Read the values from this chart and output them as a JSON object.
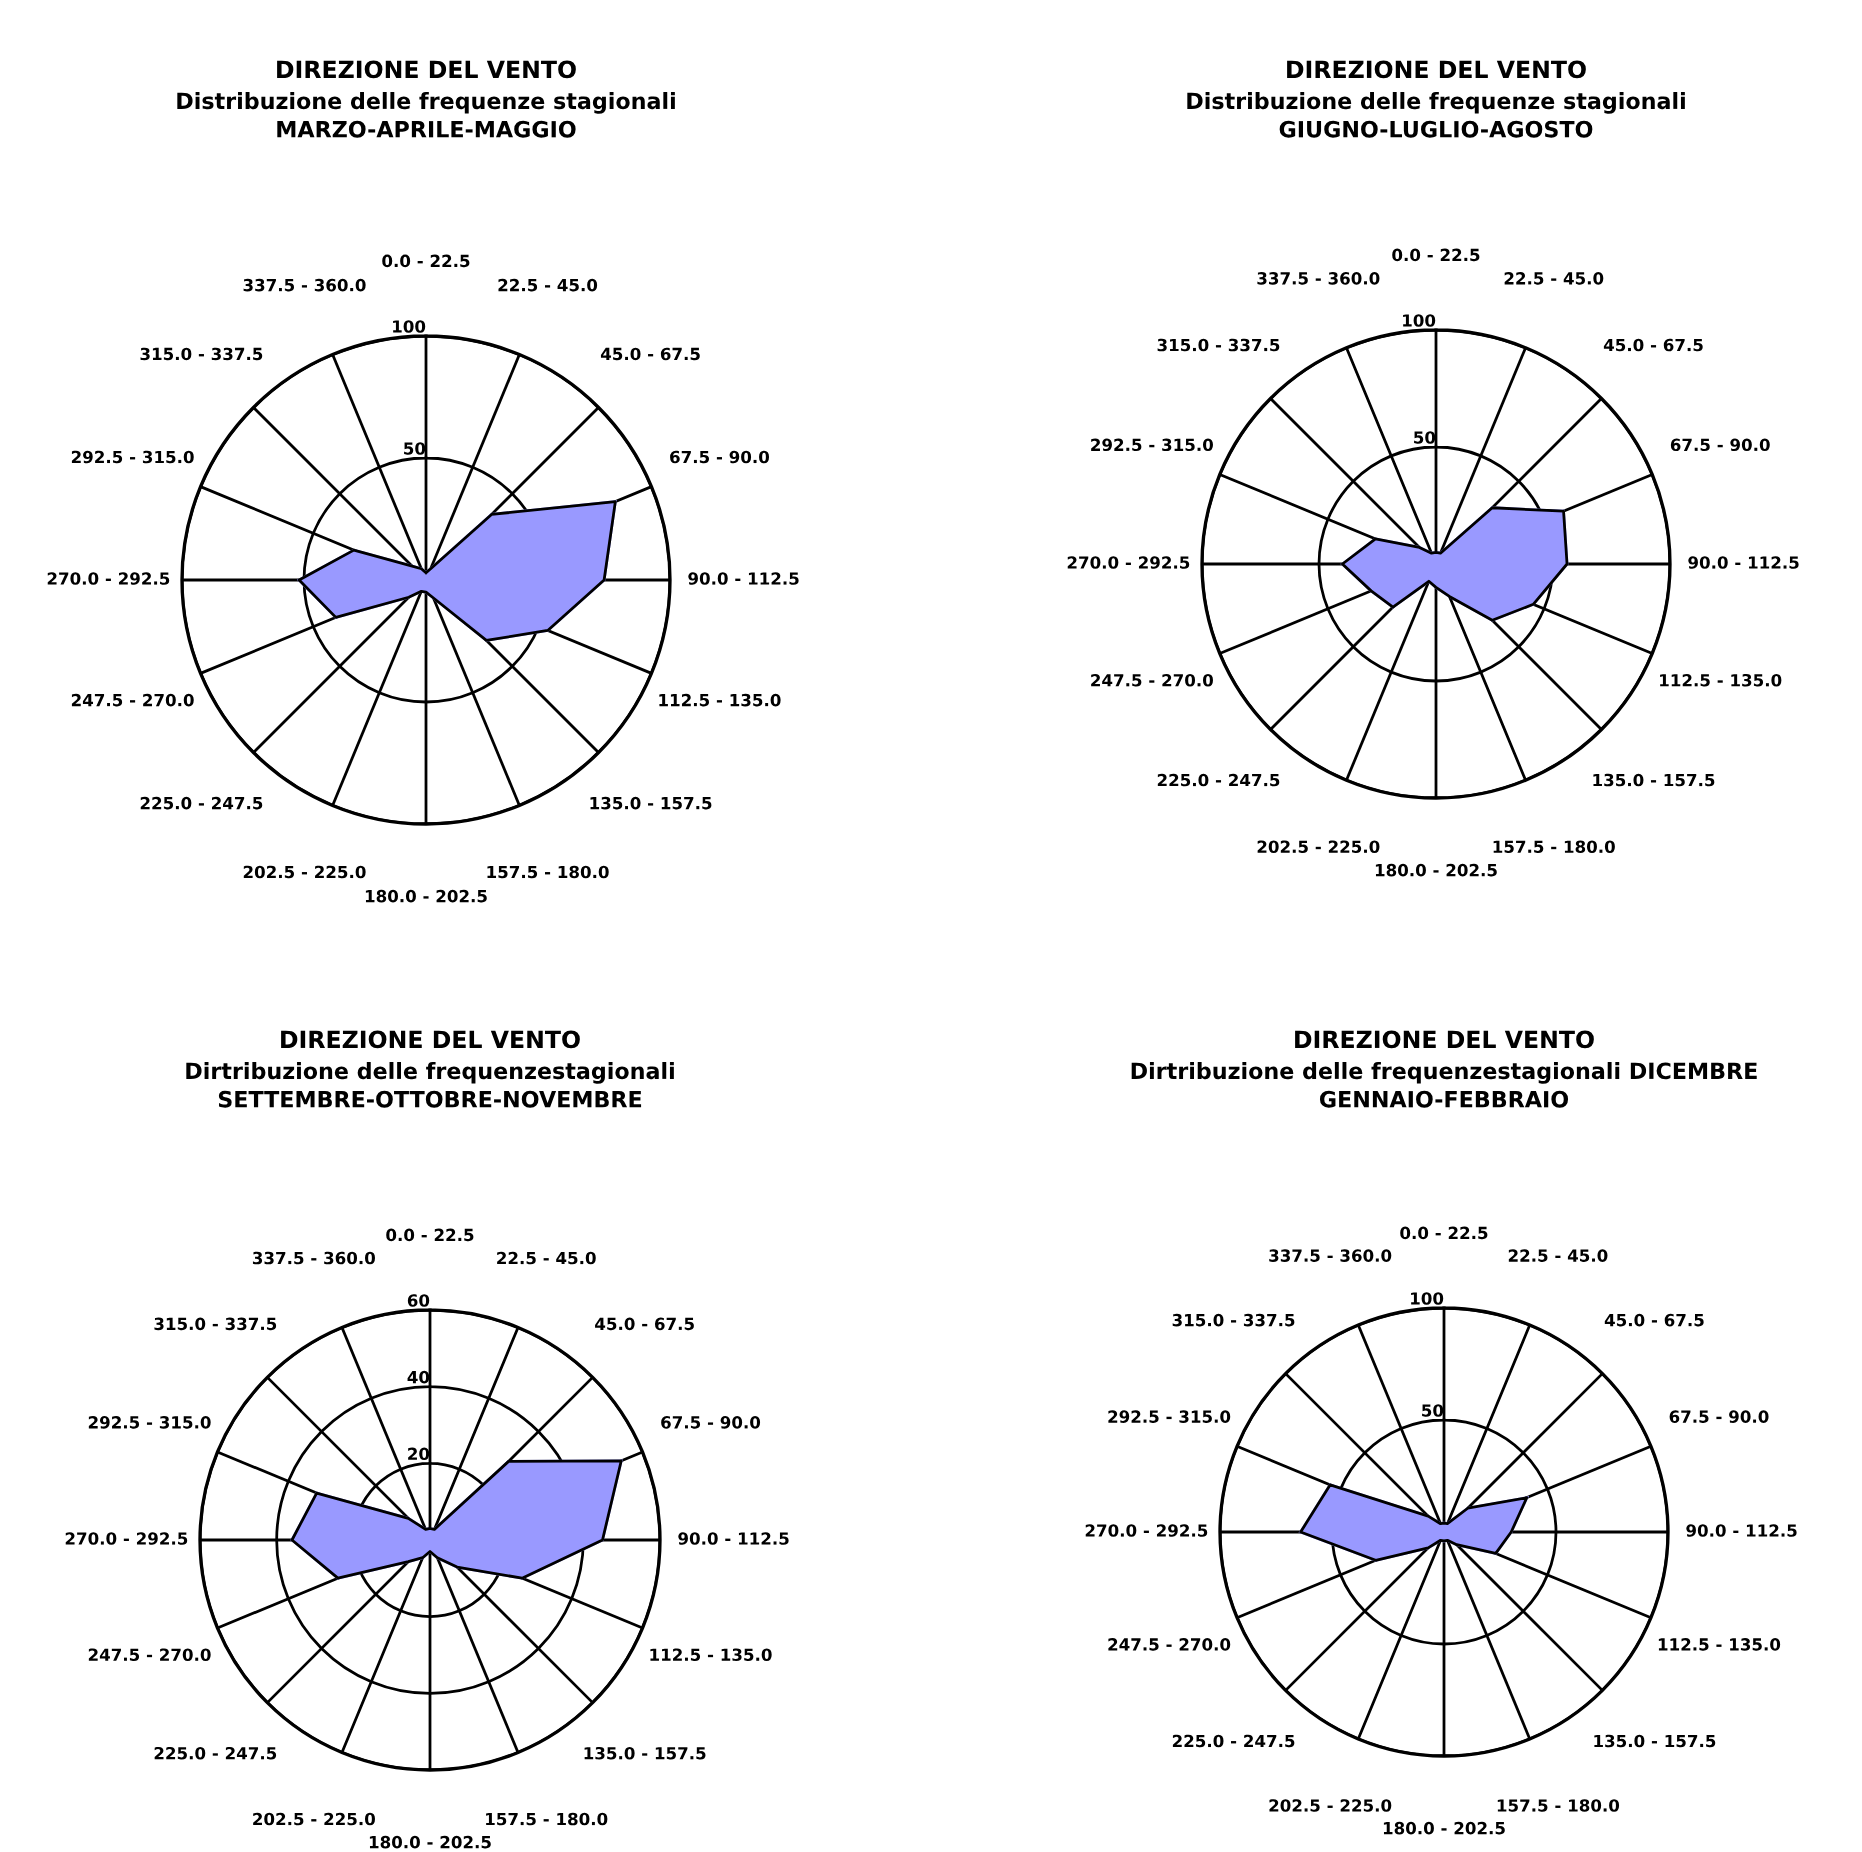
{
  "chart_data": [
    {
      "type": "radar",
      "title": "DIREZIONE DEL VENTO",
      "subtitle": "Distribuzione delle frequenze stagionali\nMARZO-APRILE-MAGGIO",
      "categories": [
        "0.0 - 22.5",
        "22.5 - 45.0",
        "45.0 - 67.5",
        "67.5 - 90.0",
        "90.0 - 112.5",
        "112.5 - 135.0",
        "135.0 - 157.5",
        "157.5 - 180.0",
        "180.0 - 202.5",
        "202.5 - 225.0",
        "225.0 - 247.5",
        "247.5 - 270.0",
        "270.0 - 292.5",
        "292.5 - 315.0",
        "315.0 - 337.5",
        "337.5 - 360.0"
      ],
      "ylim": [
        0,
        100
      ],
      "yticks": [
        50,
        100
      ],
      "grid": true,
      "series": [
        {
          "color": "#9999ff",
          "values": [
            3,
            5,
            38,
            84,
            73,
            54,
            35,
            8,
            5,
            5,
            10,
            40,
            52,
            32,
            8,
            5
          ]
        }
      ]
    },
    {
      "type": "radar",
      "title": "DIREZIONE DEL VENTO",
      "subtitle": "Distribuzione delle frequenze stagionali\nGIUGNO-LUGLIO-AGOSTO",
      "categories": [
        "0.0 - 22.5",
        "22.5 - 45.0",
        "45.0 - 67.5",
        "67.5 - 90.0",
        "90.0 - 112.5",
        "112.5 - 135.0",
        "135.0 - 157.5",
        "157.5 - 180.0",
        "180.0 - 202.5",
        "202.5 - 225.0",
        "225.0 - 247.5",
        "247.5 - 270.0",
        "270.0 - 292.5",
        "292.5 - 315.0",
        "315.0 - 337.5",
        "337.5 - 360.0"
      ],
      "ylim": [
        0,
        100
      ],
      "yticks": [
        50,
        100
      ],
      "grid": true,
      "series": [
        {
          "color": "#9999ff",
          "values": [
            5,
            5,
            34,
            59,
            56,
            45,
            34,
            15,
            10,
            8,
            26,
            30,
            40,
            28,
            10,
            5
          ]
        }
      ]
    },
    {
      "type": "radar",
      "title": "DIREZIONE DEL VENTO",
      "subtitle": "Dirtribuzione delle frequenzestagionali\nSETTEMBRE-OTTOBRE-NOVEMBRE",
      "categories": [
        "0.0 - 22.5",
        "22.5 - 45.0",
        "45.0 - 67.5",
        "67.5 - 90.0",
        "90.0 - 112.5",
        "112.5 - 135.0",
        "135.0 - 157.5",
        "157.5 - 180.0",
        "180.0 - 202.5",
        "202.5 - 225.0",
        "225.0 - 247.5",
        "247.5 - 270.0",
        "270.0 - 292.5",
        "292.5 - 315.0",
        "315.0 - 337.5",
        "337.5 - 360.0"
      ],
      "ylim": [
        0,
        60
      ],
      "yticks": [
        20,
        40,
        60
      ],
      "grid": true,
      "series": [
        {
          "color": "#9999ff",
          "values": [
            3,
            3,
            29,
            54,
            45,
            26,
            10,
            5,
            3,
            5,
            8,
            26,
            36,
            32,
            8,
            3
          ]
        }
      ]
    },
    {
      "type": "radar",
      "title": "DIREZIONE DEL VENTO",
      "subtitle": "Dirtribuzione delle frequenzestagionali DICEMBRE\nGENNAIO-FEBBRAIO",
      "categories": [
        "0.0 - 22.5",
        "22.5 - 45.0",
        "45.0 - 67.5",
        "67.5 - 90.0",
        "90.0 - 112.5",
        "112.5 - 135.0",
        "135.0 - 157.5",
        "157.5 - 180.0",
        "180.0 - 202.5",
        "202.5 - 225.0",
        "225.0 - 247.5",
        "247.5 - 270.0",
        "270.0 - 292.5",
        "292.5 - 315.0",
        "315.0 - 337.5",
        "337.5 - 360.0"
      ],
      "ylim": [
        0,
        100
      ],
      "yticks": [
        50,
        100
      ],
      "grid": true,
      "series": [
        {
          "color": "#9999ff",
          "values": [
            4,
            4,
            15,
            40,
            30,
            25,
            8,
            4,
            4,
            4,
            10,
            33,
            64,
            55,
            10,
            4
          ]
        }
      ]
    }
  ]
}
